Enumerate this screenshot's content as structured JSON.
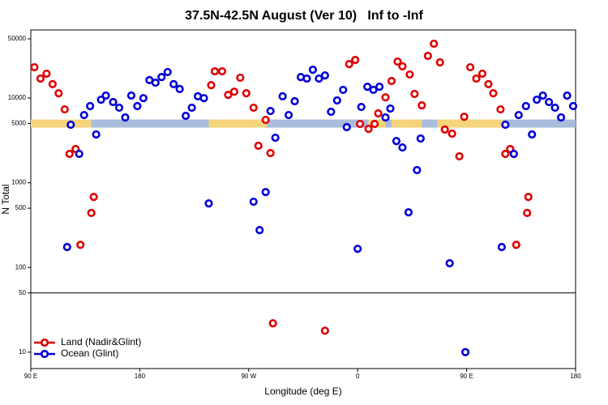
{
  "chart_data": {
    "type": "scatter",
    "title": "37.5N-42.5N August (Ver 10)   Inf to -Inf",
    "x_label": "Longitude (deg E)",
    "y_label": "N Total",
    "y_log": true,
    "legend": "bottom-left",
    "break_line": 50,
    "xlim": [
      90,
      540
    ],
    "xticks": [
      {
        "value": 90,
        "label": "90 E"
      },
      180,
      {
        "value": 270,
        "label": "90 W"
      },
      {
        "value": 360,
        "label": "0"
      },
      {
        "value": 450,
        "label": "90 E"
      },
      {
        "value": 540,
        "label": "180"
      }
    ],
    "ylim": [
      6.4,
      63700
    ],
    "yticks": [
      10,
      50,
      100,
      500,
      1000,
      5000,
      10000,
      50000
    ],
    "band": {
      "value": 5000,
      "segments": [
        {
          "x": [
            90,
            140
          ],
          "color": "#f5d47c"
        },
        {
          "x": [
            140,
            237
          ],
          "color": "#a8bcdb"
        },
        {
          "x": [
            237,
            285
          ],
          "color": "#f5d47c"
        },
        {
          "x": [
            285,
            369
          ],
          "color": "#a8bcdb"
        },
        {
          "x": [
            369,
            383
          ],
          "color": "#f5d47c"
        },
        {
          "x": [
            383,
            388
          ],
          "color": "#a8bcdb"
        },
        {
          "x": [
            388,
            413
          ],
          "color": "#f5d47c"
        },
        {
          "x": [
            413,
            426
          ],
          "color": "#a8bcdb"
        },
        {
          "x": [
            426,
            480
          ],
          "color": "#f5d47c"
        },
        {
          "x": [
            480,
            540
          ],
          "color": "#a8bcdb"
        }
      ]
    },
    "series": [
      {
        "name": "Land (Nadir&Glint)",
        "color": "#e00000",
        "x": [
          93,
          98,
          103,
          108,
          113,
          118,
          122,
          127,
          131,
          140,
          142,
          239,
          242,
          248,
          253,
          258,
          263,
          268,
          274,
          278,
          284,
          288,
          290,
          333,
          353,
          358,
          362,
          369,
          374,
          377,
          383,
          388,
          393,
          397,
          403,
          407,
          413,
          418,
          423,
          428,
          432,
          438,
          444,
          448,
          453,
          458,
          463,
          468,
          472,
          478,
          482,
          486,
          491,
          500,
          501
        ],
        "values": [
          23100,
          17000,
          19400,
          14600,
          11400,
          7350,
          2190,
          2500,
          185,
          440,
          680,
          14200,
          20700,
          20700,
          10900,
          11900,
          17400,
          11400,
          7700,
          2730,
          5520,
          2240,
          21.9,
          17.9,
          25200,
          28200,
          4950,
          4330,
          4950,
          6590,
          10200,
          15900,
          27000,
          23700,
          19000,
          11200,
          8200,
          31500,
          43800,
          26400,
          4240,
          3800,
          2050,
          6020,
          23100,
          17000,
          19400,
          14600,
          11400,
          7350,
          2190,
          2500,
          185,
          440,
          680
        ]
      },
      {
        "name": "Ocean (Glint)",
        "color": "#0000d8",
        "x": [
          120,
          123,
          130,
          134,
          139,
          144,
          148,
          152,
          158,
          163,
          168,
          173,
          178,
          183,
          188,
          193,
          198,
          203,
          208,
          213,
          218,
          223,
          228,
          233,
          237,
          274,
          279,
          284,
          288,
          292,
          298,
          303,
          308,
          313,
          318,
          323,
          328,
          333,
          338,
          343,
          348,
          351,
          360,
          363,
          368,
          373,
          378,
          383,
          387,
          392,
          397,
          402,
          409,
          412,
          436,
          449,
          479,
          482,
          489,
          493,
          499,
          504,
          508,
          513,
          518,
          523,
          528,
          533,
          538
        ],
        "values": [
          174,
          4840,
          2190,
          6300,
          8040,
          3720,
          9570,
          10700,
          8980,
          7700,
          5900,
          10700,
          8040,
          9980,
          16300,
          15200,
          17700,
          20300,
          14600,
          12800,
          6170,
          7700,
          10500,
          9980,
          570,
          597,
          276,
          777,
          7030,
          3400,
          10500,
          6300,
          9170,
          17700,
          17000,
          21600,
          17000,
          18500,
          6890,
          9370,
          12500,
          4530,
          166,
          7850,
          13600,
          12500,
          13600,
          5900,
          7520,
          3110,
          2610,
          448,
          1410,
          3330,
          112,
          10,
          174,
          4840,
          2190,
          6300,
          8040,
          3720,
          9570,
          10700,
          8980,
          7700,
          5900,
          10700,
          8040
        ]
      }
    ]
  }
}
